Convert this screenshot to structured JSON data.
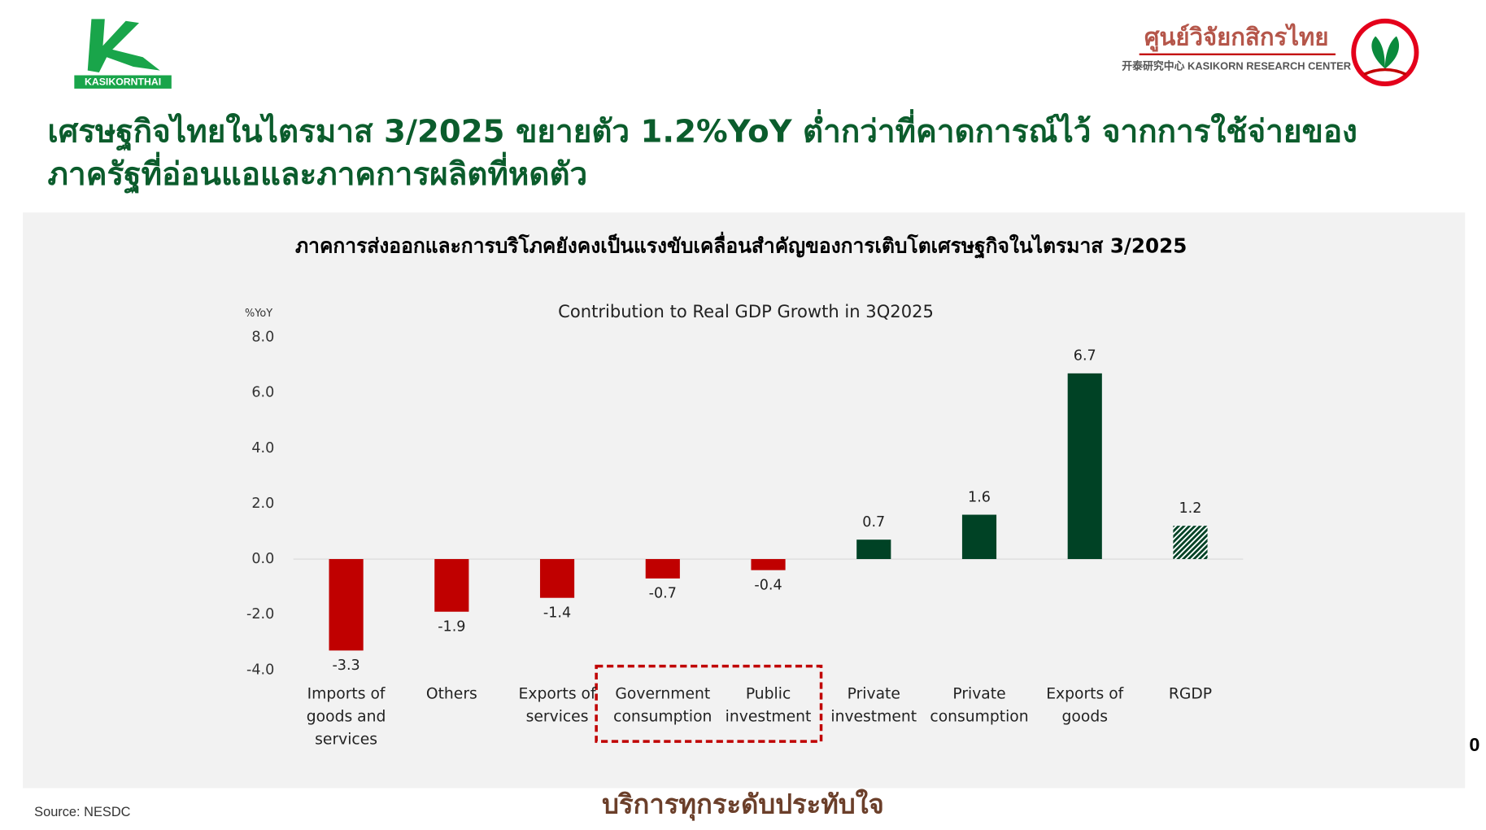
{
  "header": {
    "logo_text": "KASIKORNTHAI",
    "center_name": "ศูนย์วิจัยกสิกรไทย",
    "center_subname": "开泰研究中心 KASIKORN RESEARCH CENTER",
    "title_lines": [
      "เศรษฐกิจไทยในไตรมาส 3/2025 ขยายตัว 1.2%YoY ต่ำกว่าที่คาดการณ์ไว้ จากการใช้จ่ายของ",
      "ภาครัฐที่อ่อนแอและภาคการผลิตที่หดตัว"
    ]
  },
  "panel_title": "ภาคการส่งออกและการบริโภคยังคงเป็นแรงขับเคลื่อนสำคัญของการเติบโตเศรษฐกิจในไตรมาส 3/2025",
  "chart_data": {
    "type": "bar",
    "title": "Contribution to Real GDP Growth in 3Q2025",
    "y_label": "%YoY",
    "categories": [
      "Imports of goods and services",
      "Others",
      "Exports of services",
      "Government consumption",
      "Public investment",
      "Private investment",
      "Private consumption",
      "Exports of goods",
      "RGDP"
    ],
    "values": [
      -3.3,
      -1.9,
      -1.4,
      -0.7,
      -0.4,
      0.7,
      1.6,
      6.7,
      1.2
    ],
    "colors": [
      "#c00000",
      "#c00000",
      "#c00000",
      "#c00000",
      "#c00000",
      "#004225",
      "#004225",
      "#004225",
      "#004225"
    ],
    "hatched": [
      false,
      false,
      false,
      false,
      false,
      false,
      false,
      false,
      true
    ],
    "ylim": [
      -4,
      8
    ],
    "yticks": [
      {
        "value": -4,
        "label": "-4.0"
      },
      {
        "value": -2,
        "label": "-2.0"
      },
      {
        "value": 0,
        "label": "0.0"
      },
      {
        "value": 2,
        "label": "2.0"
      },
      {
        "value": 4,
        "label": "4.0"
      },
      {
        "value": 6,
        "label": "6.0"
      },
      {
        "value": 8,
        "label": "8.0"
      }
    ]
  },
  "source": "Source: NESDC",
  "footer": "บริการทุกระดับประทับใจ",
  "page_number": "0"
}
